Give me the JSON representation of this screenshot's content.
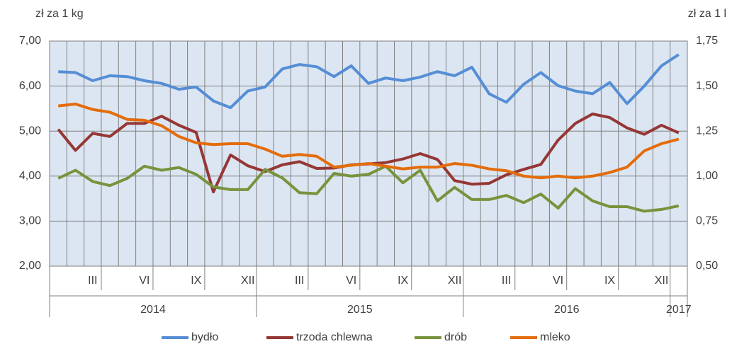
{
  "chart_data": {
    "type": "line",
    "y_axis_label": "zł za 1 kg",
    "y2_axis_label": "zł za 1 l",
    "categories": [
      null,
      null,
      "III",
      null,
      null,
      "VI",
      null,
      null,
      "IX",
      null,
      null,
      "XII",
      null,
      null,
      "III",
      null,
      null,
      "VI",
      null,
      null,
      "IX",
      null,
      null,
      "XII",
      null,
      null,
      "III",
      null,
      null,
      "VI",
      null,
      null,
      "IX",
      null,
      null,
      "XII",
      null
    ],
    "years": [
      "2014",
      "2015",
      "2016",
      "2017"
    ],
    "ylim": [
      2,
      7
    ],
    "yticks": [
      {
        "value": 2,
        "label": "2,00"
      },
      {
        "value": 3,
        "label": "3,00"
      },
      {
        "value": 4,
        "label": "4,00"
      },
      {
        "value": 5,
        "label": "5,00"
      },
      {
        "value": 6,
        "label": "6,00"
      },
      {
        "value": 7,
        "label": "7,00"
      }
    ],
    "y2lim": [
      0.5,
      1.75
    ],
    "y2ticks": [
      {
        "value": 0.5,
        "label": "0,50"
      },
      {
        "value": 0.75,
        "label": "0,75"
      },
      {
        "value": 1,
        "label": "1,00"
      },
      {
        "value": 1.25,
        "label": "1,25"
      },
      {
        "value": 1.5,
        "label": "1,50"
      },
      {
        "value": 1.75,
        "label": "1,75"
      }
    ],
    "grid": true,
    "legend": "bottom",
    "series": [
      {
        "name": "bydło",
        "color": "#558ed5",
        "values": [
          6.32,
          6.3,
          6.12,
          6.23,
          6.21,
          6.12,
          6.06,
          5.93,
          5.98,
          5.67,
          5.52,
          5.89,
          5.98,
          6.38,
          6.48,
          6.43,
          6.21,
          6.45,
          6.06,
          6.18,
          6.12,
          6.2,
          6.32,
          6.23,
          6.42,
          5.83,
          5.64,
          6.04,
          6.3,
          6.01,
          5.89,
          5.83,
          6.08,
          5.61,
          6.0,
          6.45,
          6.7
        ]
      },
      {
        "name": "trzoda chlewna",
        "color": "#953735",
        "values": [
          5.04,
          4.57,
          4.95,
          4.88,
          5.17,
          5.17,
          5.33,
          5.13,
          4.97,
          3.65,
          4.47,
          4.23,
          4.1,
          4.25,
          4.32,
          4.17,
          4.18,
          4.25,
          4.27,
          4.3,
          4.38,
          4.5,
          4.37,
          3.9,
          3.82,
          3.84,
          4.03,
          4.15,
          4.26,
          4.8,
          5.17,
          5.38,
          5.3,
          5.07,
          4.93,
          5.13,
          4.96
        ]
      },
      {
        "name": "drób",
        "color": "#77933c",
        "values": [
          3.95,
          4.13,
          3.88,
          3.79,
          3.95,
          4.22,
          4.13,
          4.19,
          4.04,
          3.76,
          3.7,
          3.7,
          4.15,
          3.96,
          3.63,
          3.61,
          4.06,
          4.0,
          4.04,
          4.22,
          3.85,
          4.13,
          3.45,
          3.75,
          3.48,
          3.48,
          3.57,
          3.41,
          3.6,
          3.29,
          3.72,
          3.45,
          3.32,
          3.32,
          3.22,
          3.26,
          3.34
        ]
      },
      {
        "name": "mleko",
        "color": "#e46c0a",
        "axis": "y2",
        "values": [
          1.39,
          1.4,
          1.37,
          1.355,
          1.315,
          1.31,
          1.28,
          1.22,
          1.185,
          1.175,
          1.18,
          1.18,
          1.15,
          1.11,
          1.12,
          1.11,
          1.05,
          1.06,
          1.07,
          1.055,
          1.04,
          1.05,
          1.05,
          1.07,
          1.06,
          1.04,
          1.03,
          1.0,
          0.99,
          1.0,
          0.99,
          1.0,
          1.02,
          1.05,
          1.14,
          1.18,
          1.205
        ]
      }
    ]
  }
}
